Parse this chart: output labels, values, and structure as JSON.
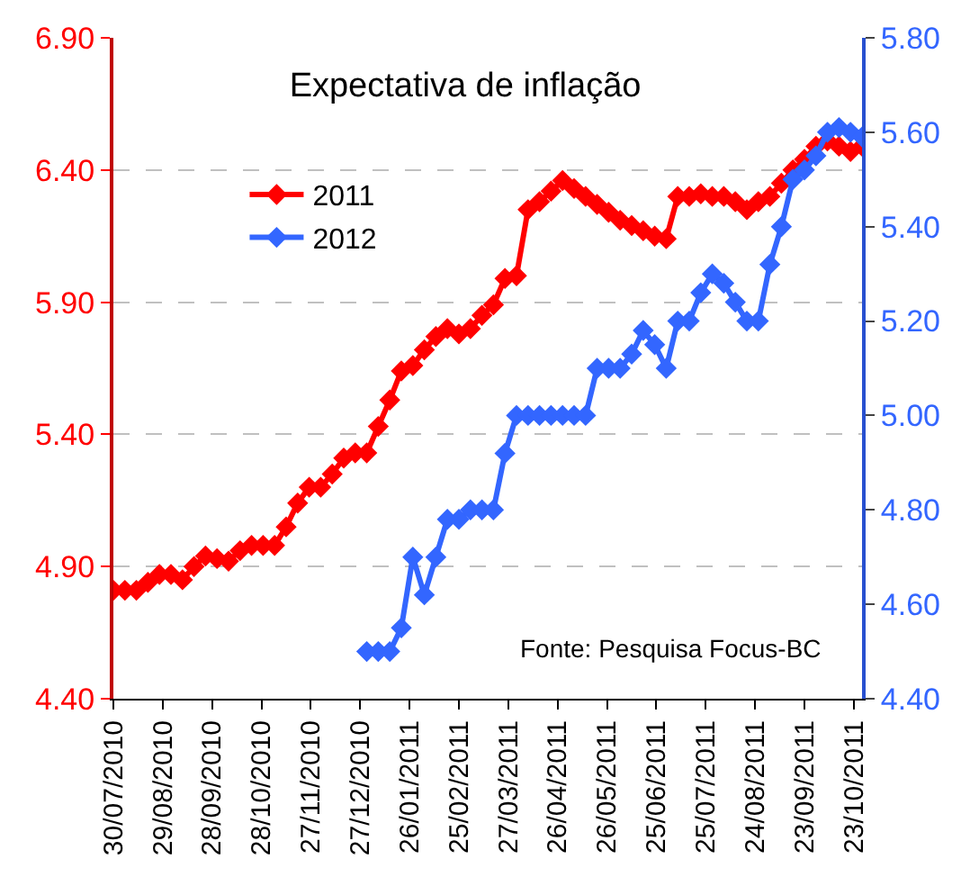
{
  "chart_data": {
    "type": "line",
    "title": "Expectativa de inflação",
    "annotations": [
      "Fonte: Pesquisa Focus-BC"
    ],
    "x": [
      "2010-07-30",
      "2010-08-06",
      "2010-08-13",
      "2010-08-20",
      "2010-08-27",
      "2010-09-03",
      "2010-09-10",
      "2010-09-17",
      "2010-09-24",
      "2010-10-01",
      "2010-10-08",
      "2010-10-15",
      "2010-10-22",
      "2010-10-29",
      "2010-11-05",
      "2010-11-12",
      "2010-11-19",
      "2010-11-26",
      "2010-12-03",
      "2010-12-10",
      "2010-12-17",
      "2010-12-24",
      "2010-12-31",
      "2011-01-07",
      "2011-01-14",
      "2011-01-21",
      "2011-01-28",
      "2011-02-04",
      "2011-02-11",
      "2011-02-18",
      "2011-02-25",
      "2011-03-04",
      "2011-03-11",
      "2011-03-18",
      "2011-03-25",
      "2011-04-01",
      "2011-04-08",
      "2011-04-15",
      "2011-04-22",
      "2011-04-29",
      "2011-05-06",
      "2011-05-13",
      "2011-05-20",
      "2011-05-27",
      "2011-06-03",
      "2011-06-10",
      "2011-06-17",
      "2011-06-24",
      "2011-07-01",
      "2011-07-08",
      "2011-07-15",
      "2011-07-22",
      "2011-07-29",
      "2011-08-05",
      "2011-08-12",
      "2011-08-19",
      "2011-08-26",
      "2011-09-02",
      "2011-09-09",
      "2011-09-16",
      "2011-09-23",
      "2011-09-30",
      "2011-10-07",
      "2011-10-14",
      "2011-10-21",
      "2011-10-28"
    ],
    "series": [
      {
        "name": "2011",
        "color": "#ff0000",
        "values": [
          4.81,
          4.81,
          4.81,
          4.84,
          4.87,
          4.87,
          4.85,
          4.9,
          4.94,
          4.93,
          4.92,
          4.96,
          4.98,
          4.98,
          4.98,
          5.05,
          5.14,
          5.2,
          5.2,
          5.25,
          5.31,
          5.33,
          5.33,
          5.43,
          5.53,
          5.64,
          5.66,
          5.72,
          5.77,
          5.8,
          5.78,
          5.8,
          5.85,
          5.89,
          5.99,
          6.0,
          6.25,
          6.28,
          6.32,
          6.36,
          6.33,
          6.3,
          6.27,
          6.24,
          6.21,
          6.19,
          6.17,
          6.15,
          6.14,
          6.3,
          6.3,
          6.31,
          6.3,
          6.3,
          6.28,
          6.25,
          6.28,
          6.3,
          6.35,
          6.4,
          6.44,
          6.49,
          6.51,
          6.49,
          6.47,
          6.49
        ]
      },
      {
        "name": "2012",
        "color": "#3366ff",
        "axis": "y2",
        "values": [
          null,
          null,
          null,
          null,
          null,
          null,
          null,
          null,
          null,
          null,
          null,
          null,
          null,
          null,
          null,
          null,
          null,
          null,
          null,
          null,
          null,
          null,
          4.5,
          4.5,
          4.5,
          4.55,
          4.7,
          4.62,
          4.7,
          4.78,
          4.78,
          4.8,
          4.8,
          4.8,
          4.92,
          5.0,
          5.0,
          5.0,
          5.0,
          5.0,
          5.0,
          5.0,
          5.1,
          5.1,
          5.1,
          5.13,
          5.18,
          5.15,
          5.1,
          5.2,
          5.2,
          5.26,
          5.3,
          5.28,
          5.24,
          5.2,
          5.2,
          5.32,
          5.4,
          5.5,
          5.52,
          5.55,
          5.6,
          5.61,
          5.6,
          5.59
        ]
      }
    ],
    "xlim": [
      "2010-07-30",
      "2011-10-28"
    ],
    "xticks": [
      {
        "value": "2010-07-30",
        "label": "30/07/2010"
      },
      {
        "value": "2010-08-29",
        "label": "29/08/2010"
      },
      {
        "value": "2010-09-28",
        "label": "28/09/2010"
      },
      {
        "value": "2010-10-28",
        "label": "28/10/2010"
      },
      {
        "value": "2010-11-27",
        "label": "27/11/2010"
      },
      {
        "value": "2010-12-27",
        "label": "27/12/2010"
      },
      {
        "value": "2011-01-26",
        "label": "26/01/2011"
      },
      {
        "value": "2011-02-25",
        "label": "25/02/2011"
      },
      {
        "value": "2011-03-27",
        "label": "27/03/2011"
      },
      {
        "value": "2011-04-26",
        "label": "26/04/2011"
      },
      {
        "value": "2011-05-26",
        "label": "26/05/2011"
      },
      {
        "value": "2011-06-25",
        "label": "25/06/2011"
      },
      {
        "value": "2011-07-25",
        "label": "25/07/2011"
      },
      {
        "value": "2011-08-24",
        "label": "24/08/2011"
      },
      {
        "value": "2011-09-23",
        "label": "23/09/2011"
      },
      {
        "value": "2011-10-23",
        "label": "23/10/2011"
      }
    ],
    "ylim": [
      4.4,
      6.9
    ],
    "yticks": [
      {
        "value": 4.4,
        "label": "4.40"
      },
      {
        "value": 4.9,
        "label": "4.90"
      },
      {
        "value": 5.4,
        "label": "5.40"
      },
      {
        "value": 5.9,
        "label": "5.90"
      },
      {
        "value": 6.4,
        "label": "6.40"
      },
      {
        "value": 6.9,
        "label": "6.90"
      }
    ],
    "y2lim": [
      4.4,
      5.8
    ],
    "y2ticks": [
      {
        "value": 4.4,
        "label": "4.40"
      },
      {
        "value": 4.6,
        "label": "4.60"
      },
      {
        "value": 4.8,
        "label": "4.80"
      },
      {
        "value": 5.0,
        "label": "5.00"
      },
      {
        "value": 5.2,
        "label": "5.20"
      },
      {
        "value": 5.4,
        "label": "5.40"
      },
      {
        "value": 5.6,
        "label": "5.60"
      },
      {
        "value": 5.8,
        "label": "5.80"
      }
    ],
    "grid": "y",
    "legend": "left",
    "marker": "diamond",
    "line_style": "solid"
  }
}
